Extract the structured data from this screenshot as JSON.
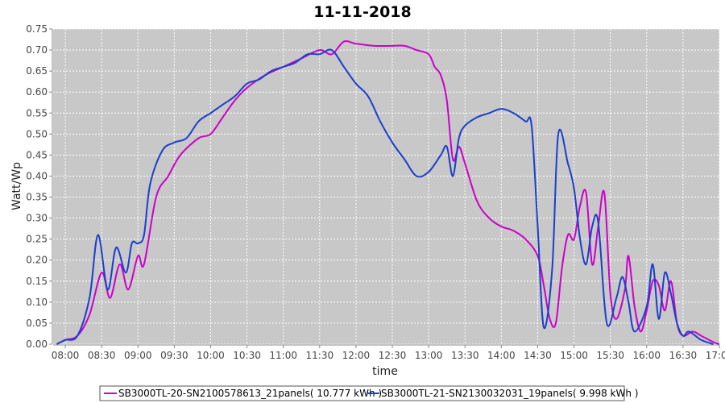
{
  "chart_data": {
    "type": "line",
    "title": "11-11-2018",
    "xlabel": "time",
    "ylabel": "Watt/Wp",
    "xlim": [
      "07:50",
      "17:00"
    ],
    "ylim": [
      0,
      0.75
    ],
    "x_ticks": [
      "08:00",
      "08:30",
      "09:00",
      "09:30",
      "10:00",
      "10:30",
      "11:00",
      "11:30",
      "12:00",
      "12:30",
      "13:00",
      "13:30",
      "14:00",
      "14:30",
      "15:00",
      "15:30",
      "16:00",
      "16:30",
      "17:00"
    ],
    "y_ticks": [
      "0.00",
      "0.05",
      "0.10",
      "0.15",
      "0.20",
      "0.25",
      "0.30",
      "0.35",
      "0.40",
      "0.45",
      "0.50",
      "0.55",
      "0.60",
      "0.65",
      "0.70",
      "0.75"
    ],
    "grid": true,
    "legend_position": "bottom",
    "colors": {
      "plot_bg": "#c8c8c8",
      "grid": "#ffffff"
    },
    "series": [
      {
        "name": "SB3000TL-20-SN2100578613_21panels( 10.777 kWh )",
        "color": "#cc00cc",
        "points": [
          [
            "07:53",
            0.0
          ],
          [
            "08:00",
            0.01
          ],
          [
            "08:10",
            0.02
          ],
          [
            "08:20",
            0.07
          ],
          [
            "08:30",
            0.17
          ],
          [
            "08:37",
            0.11
          ],
          [
            "08:45",
            0.19
          ],
          [
            "08:52",
            0.13
          ],
          [
            "09:00",
            0.21
          ],
          [
            "09:05",
            0.19
          ],
          [
            "09:15",
            0.35
          ],
          [
            "09:25",
            0.4
          ],
          [
            "09:35",
            0.45
          ],
          [
            "09:50",
            0.49
          ],
          [
            "10:00",
            0.5
          ],
          [
            "10:10",
            0.54
          ],
          [
            "10:20",
            0.58
          ],
          [
            "10:30",
            0.61
          ],
          [
            "10:45",
            0.64
          ],
          [
            "11:00",
            0.66
          ],
          [
            "11:15",
            0.68
          ],
          [
            "11:30",
            0.7
          ],
          [
            "11:40",
            0.69
          ],
          [
            "11:50",
            0.72
          ],
          [
            "12:00",
            0.715
          ],
          [
            "12:15",
            0.71
          ],
          [
            "12:30",
            0.71
          ],
          [
            "12:40",
            0.71
          ],
          [
            "12:50",
            0.7
          ],
          [
            "13:00",
            0.69
          ],
          [
            "13:05",
            0.66
          ],
          [
            "13:10",
            0.64
          ],
          [
            "13:15",
            0.58
          ],
          [
            "13:20",
            0.44
          ],
          [
            "13:25",
            0.47
          ],
          [
            "13:30",
            0.43
          ],
          [
            "13:40",
            0.34
          ],
          [
            "13:50",
            0.3
          ],
          [
            "14:00",
            0.28
          ],
          [
            "14:10",
            0.27
          ],
          [
            "14:20",
            0.25
          ],
          [
            "14:30",
            0.21
          ],
          [
            "14:35",
            0.14
          ],
          [
            "14:40",
            0.06
          ],
          [
            "14:45",
            0.05
          ],
          [
            "14:50",
            0.18
          ],
          [
            "14:55",
            0.26
          ],
          [
            "15:00",
            0.25
          ],
          [
            "15:05",
            0.33
          ],
          [
            "15:10",
            0.36
          ],
          [
            "15:15",
            0.19
          ],
          [
            "15:20",
            0.28
          ],
          [
            "15:25",
            0.36
          ],
          [
            "15:30",
            0.12
          ],
          [
            "15:35",
            0.06
          ],
          [
            "15:42",
            0.13
          ],
          [
            "15:45",
            0.21
          ],
          [
            "15:50",
            0.09
          ],
          [
            "15:55",
            0.03
          ],
          [
            "16:00",
            0.08
          ],
          [
            "16:05",
            0.15
          ],
          [
            "16:10",
            0.14
          ],
          [
            "16:15",
            0.08
          ],
          [
            "16:20",
            0.15
          ],
          [
            "16:25",
            0.05
          ],
          [
            "16:30",
            0.02
          ],
          [
            "16:38",
            0.03
          ],
          [
            "16:45",
            0.02
          ],
          [
            "16:55",
            0.005
          ],
          [
            "17:00",
            0.0
          ]
        ]
      },
      {
        "name": "SB3000TL-21-SN2130032031_19panels( 9.998 kWh )",
        "color": "#1a3fcc",
        "points": [
          [
            "07:53",
            0.0
          ],
          [
            "08:00",
            0.01
          ],
          [
            "08:10",
            0.02
          ],
          [
            "08:20",
            0.11
          ],
          [
            "08:27",
            0.26
          ],
          [
            "08:35",
            0.13
          ],
          [
            "08:42",
            0.23
          ],
          [
            "08:50",
            0.17
          ],
          [
            "08:55",
            0.24
          ],
          [
            "09:00",
            0.24
          ],
          [
            "09:05",
            0.26
          ],
          [
            "09:10",
            0.38
          ],
          [
            "09:20",
            0.46
          ],
          [
            "09:30",
            0.48
          ],
          [
            "09:40",
            0.49
          ],
          [
            "09:50",
            0.53
          ],
          [
            "10:00",
            0.55
          ],
          [
            "10:10",
            0.57
          ],
          [
            "10:20",
            0.59
          ],
          [
            "10:30",
            0.62
          ],
          [
            "10:40",
            0.63
          ],
          [
            "10:50",
            0.65
          ],
          [
            "11:00",
            0.66
          ],
          [
            "11:10",
            0.67
          ],
          [
            "11:20",
            0.69
          ],
          [
            "11:30",
            0.69
          ],
          [
            "11:40",
            0.7
          ],
          [
            "11:50",
            0.66
          ],
          [
            "12:00",
            0.62
          ],
          [
            "12:10",
            0.59
          ],
          [
            "12:20",
            0.53
          ],
          [
            "12:30",
            0.48
          ],
          [
            "12:40",
            0.44
          ],
          [
            "12:50",
            0.4
          ],
          [
            "13:00",
            0.41
          ],
          [
            "13:10",
            0.45
          ],
          [
            "13:15",
            0.47
          ],
          [
            "13:20",
            0.4
          ],
          [
            "13:25",
            0.49
          ],
          [
            "13:30",
            0.52
          ],
          [
            "13:40",
            0.54
          ],
          [
            "13:50",
            0.55
          ],
          [
            "14:00",
            0.56
          ],
          [
            "14:10",
            0.55
          ],
          [
            "14:20",
            0.53
          ],
          [
            "14:25",
            0.52
          ],
          [
            "14:30",
            0.28
          ],
          [
            "14:35",
            0.04
          ],
          [
            "14:42",
            0.18
          ],
          [
            "14:47",
            0.5
          ],
          [
            "14:55",
            0.43
          ],
          [
            "15:00",
            0.37
          ],
          [
            "15:05",
            0.25
          ],
          [
            "15:10",
            0.19
          ],
          [
            "15:15",
            0.28
          ],
          [
            "15:20",
            0.29
          ],
          [
            "15:27",
            0.05
          ],
          [
            "15:35",
            0.11
          ],
          [
            "15:40",
            0.16
          ],
          [
            "15:45",
            0.1
          ],
          [
            "15:50",
            0.03
          ],
          [
            "16:00",
            0.09
          ],
          [
            "16:05",
            0.19
          ],
          [
            "16:10",
            0.06
          ],
          [
            "16:15",
            0.17
          ],
          [
            "16:20",
            0.12
          ],
          [
            "16:25",
            0.05
          ],
          [
            "16:30",
            0.02
          ],
          [
            "16:35",
            0.03
          ],
          [
            "16:45",
            0.01
          ],
          [
            "16:55",
            0.0
          ]
        ]
      }
    ]
  }
}
